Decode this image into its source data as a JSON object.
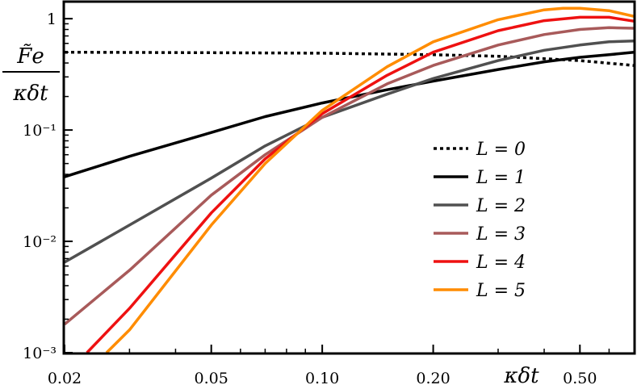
{
  "chart_data": {
    "type": "line",
    "xscale": "log",
    "yscale": "log",
    "xlim": [
      0.02,
      0.7
    ],
    "ylim": [
      0.001,
      1.4
    ],
    "xlabel": "κδt",
    "ylabel": {
      "numerator": "F̃e",
      "denominator": "κδt"
    },
    "xticks": [
      {
        "value": 0.02,
        "label": "0.02"
      },
      {
        "value": 0.05,
        "label": "0.05"
      },
      {
        "value": 0.1,
        "label": "0.10"
      },
      {
        "value": 0.2,
        "label": "0.20"
      },
      {
        "value": 0.5,
        "label": "0.50"
      }
    ],
    "yticks": [
      {
        "value": 0.001,
        "label": "10⁻³"
      },
      {
        "value": 0.01,
        "label": "10⁻²"
      },
      {
        "value": 0.1,
        "label": "10⁻¹"
      },
      {
        "value": 1,
        "label": "1"
      }
    ],
    "grid": false,
    "legend_position": "right",
    "series": [
      {
        "name": "L = 0",
        "color": "#000000",
        "dashed": true,
        "x": [
          0.02,
          0.05,
          0.1,
          0.2,
          0.3,
          0.5,
          0.7
        ],
        "y": [
          0.5,
          0.495,
          0.49,
          0.475,
          0.46,
          0.42,
          0.38
        ]
      },
      {
        "name": "L = 1",
        "color": "#000000",
        "dashed": false,
        "x": [
          0.02,
          0.03,
          0.05,
          0.07,
          0.1,
          0.15,
          0.2,
          0.3,
          0.4,
          0.5,
          0.6,
          0.7
        ],
        "y": [
          0.038,
          0.058,
          0.095,
          0.132,
          0.175,
          0.23,
          0.275,
          0.35,
          0.41,
          0.45,
          0.475,
          0.5
        ]
      },
      {
        "name": "L = 2",
        "color": "#505050",
        "dashed": false,
        "x": [
          0.02,
          0.03,
          0.05,
          0.07,
          0.1,
          0.15,
          0.2,
          0.3,
          0.4,
          0.5,
          0.6,
          0.7
        ],
        "y": [
          0.0065,
          0.014,
          0.037,
          0.072,
          0.13,
          0.21,
          0.29,
          0.42,
          0.52,
          0.58,
          0.62,
          0.63
        ]
      },
      {
        "name": "L = 3",
        "color": "#a85a5a",
        "dashed": false,
        "x": [
          0.02,
          0.03,
          0.05,
          0.07,
          0.1,
          0.15,
          0.2,
          0.3,
          0.4,
          0.5,
          0.6,
          0.7
        ],
        "y": [
          0.0018,
          0.0055,
          0.026,
          0.06,
          0.13,
          0.26,
          0.38,
          0.58,
          0.72,
          0.8,
          0.83,
          0.82
        ]
      },
      {
        "name": "L = 4",
        "color": "#ee1111",
        "dashed": false,
        "x": [
          0.023,
          0.03,
          0.05,
          0.07,
          0.1,
          0.15,
          0.2,
          0.3,
          0.4,
          0.5,
          0.6,
          0.7
        ],
        "y": [
          0.001,
          0.0025,
          0.018,
          0.055,
          0.14,
          0.31,
          0.5,
          0.78,
          0.96,
          1.03,
          1.03,
          0.95
        ]
      },
      {
        "name": "L = 5",
        "color": "#ff8c00",
        "dashed": false,
        "x": [
          0.026,
          0.03,
          0.05,
          0.07,
          0.1,
          0.15,
          0.2,
          0.3,
          0.4,
          0.45,
          0.5,
          0.6,
          0.7
        ],
        "y": [
          0.001,
          0.0016,
          0.014,
          0.05,
          0.15,
          0.37,
          0.62,
          0.98,
          1.2,
          1.24,
          1.24,
          1.18,
          1.05
        ]
      }
    ]
  }
}
